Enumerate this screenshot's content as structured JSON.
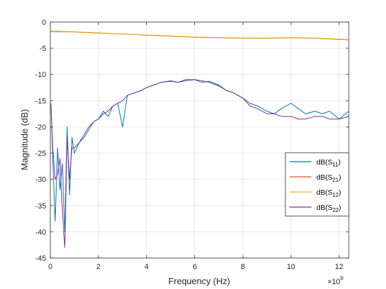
{
  "chart_data": {
    "type": "line",
    "xlabel": "Frequency (Hz)",
    "ylabel": "Magnitude (dB)",
    "x_exponent_base": "×10",
    "x_exponent": "9",
    "xlim": [
      0,
      12.4
    ],
    "ylim": [
      -45,
      0
    ],
    "x_ticks": [
      "0",
      "2",
      "4",
      "6",
      "8",
      "10",
      "12"
    ],
    "y_ticks": [
      "0",
      "-5",
      "-10",
      "-15",
      "-20",
      "-25",
      "-30",
      "-35",
      "-40",
      "-45"
    ],
    "x_tick_values": [
      0,
      2,
      4,
      6,
      8,
      10,
      12
    ],
    "y_tick_values": [
      0,
      -5,
      -10,
      -15,
      -20,
      -25,
      -30,
      -35,
      -40,
      -45
    ],
    "grid": true,
    "legend_position": "lower-right",
    "series": [
      {
        "name_prefix": "dB(S",
        "name_sub": "11",
        "name_suffix": ")",
        "color": "#0072BD",
        "x": [
          0.03,
          0.1,
          0.2,
          0.3,
          0.4,
          0.5,
          0.6,
          0.7,
          0.8,
          0.9,
          1.0,
          1.2,
          1.4,
          1.6,
          1.8,
          2.0,
          2.2,
          2.4,
          2.6,
          2.8,
          3.0,
          3.2,
          3.5,
          3.8,
          4.0,
          4.3,
          4.6,
          5.0,
          5.3,
          5.6,
          6.0,
          6.3,
          6.6,
          7.0,
          7.3,
          7.6,
          8.0,
          8.3,
          8.6,
          9.0,
          9.3,
          9.6,
          10.0,
          10.3,
          10.6,
          11.0,
          11.3,
          11.6,
          12.0,
          12.4
        ],
        "y": [
          -15.5,
          -26,
          -38,
          -24,
          -32,
          -27,
          -40,
          -20,
          -33,
          -22,
          -25,
          -23,
          -22,
          -20.5,
          -19,
          -18.5,
          -17,
          -18,
          -16,
          -15.5,
          -20,
          -14,
          -13.5,
          -13,
          -12.5,
          -12,
          -11.5,
          -11.2,
          -11.5,
          -11,
          -11,
          -11.5,
          -11.3,
          -12,
          -13,
          -13.5,
          -14.5,
          -15.5,
          -16,
          -17,
          -17.5,
          -16.5,
          -15.5,
          -16.5,
          -17.5,
          -17,
          -17.5,
          -17,
          -18.5,
          -17
        ]
      },
      {
        "name_prefix": "dB(S",
        "name_sub": "21",
        "name_suffix": ")",
        "color": "#D95319",
        "x": [
          0,
          1,
          2,
          3,
          4,
          5,
          6,
          7,
          8,
          9,
          10,
          11,
          12,
          12.4
        ],
        "y": [
          -1.8,
          -1.9,
          -2.1,
          -2.3,
          -2.5,
          -2.7,
          -2.9,
          -3.0,
          -3.1,
          -3.1,
          -3.0,
          -3.1,
          -3.3,
          -3.4
        ]
      },
      {
        "name_prefix": "dB(S",
        "name_sub": "12",
        "name_suffix": ")",
        "color": "#EDB120",
        "x": [
          0,
          1,
          2,
          3,
          4,
          5,
          6,
          7,
          8,
          9,
          10,
          11,
          12,
          12.4
        ],
        "y": [
          -1.7,
          -1.85,
          -2.05,
          -2.25,
          -2.45,
          -2.65,
          -2.85,
          -2.95,
          -3.05,
          -3.05,
          -2.95,
          -3.05,
          -3.25,
          -3.35
        ]
      },
      {
        "name_prefix": "dB(S",
        "name_sub": "22",
        "name_suffix": ")",
        "color": "#7E2F8E",
        "x": [
          0.03,
          0.1,
          0.2,
          0.3,
          0.4,
          0.5,
          0.6,
          0.7,
          0.8,
          0.9,
          1.0,
          1.2,
          1.4,
          1.6,
          1.8,
          2.0,
          2.2,
          2.4,
          2.6,
          2.8,
          3.0,
          3.2,
          3.5,
          3.8,
          4.0,
          4.3,
          4.6,
          5.0,
          5.3,
          5.6,
          6.0,
          6.3,
          6.6,
          7.0,
          7.3,
          7.6,
          8.0,
          8.3,
          8.6,
          9.0,
          9.3,
          9.6,
          10.0,
          10.3,
          10.6,
          11.0,
          11.3,
          11.6,
          12.0,
          12.4
        ],
        "y": [
          -16,
          -24,
          -30,
          -29,
          -26,
          -36,
          -43,
          -22,
          -30,
          -24,
          -24,
          -23,
          -21.5,
          -20,
          -19,
          -18.5,
          -17.5,
          -17,
          -16,
          -15.5,
          -15,
          -14,
          -13.5,
          -13,
          -12.5,
          -12,
          -11.5,
          -11.3,
          -11.5,
          -11.2,
          -11,
          -11.2,
          -11.5,
          -12.2,
          -13,
          -13.5,
          -14.5,
          -16,
          -16.5,
          -17.5,
          -17.5,
          -18,
          -18,
          -18.5,
          -18.5,
          -18,
          -18,
          -18.5,
          -18.5,
          -18
        ]
      }
    ]
  }
}
